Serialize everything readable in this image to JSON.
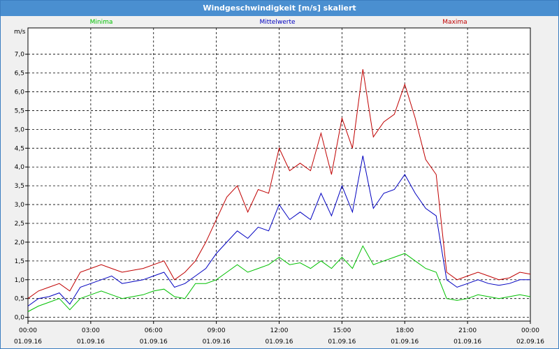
{
  "window": {
    "title": "Windgeschwindigkeit [m/s] skaliert"
  },
  "chart_data": {
    "type": "line",
    "title": "Windgeschwindigkeit [m/s] skaliert",
    "ylabel": "m/s",
    "xlabel": "",
    "ylim": [
      -0.1,
      7.7
    ],
    "yticks": [
      "0,0",
      "0,5",
      "1,0",
      "1,5",
      "2,0",
      "2,5",
      "3,0",
      "3,5",
      "4,0",
      "4,5",
      "5,0",
      "5,5",
      "6,0",
      "6,5",
      "7,0"
    ],
    "xticks": [
      {
        "time": "00:00",
        "date": "01.09.16"
      },
      {
        "time": "03:00",
        "date": "01.09.16"
      },
      {
        "time": "06:00",
        "date": "01.09.16"
      },
      {
        "time": "09:00",
        "date": "01.09.16"
      },
      {
        "time": "12:00",
        "date": "01.09.16"
      },
      {
        "time": "15:00",
        "date": "01.09.16"
      },
      {
        "time": "18:00",
        "date": "01.09.16"
      },
      {
        "time": "21:00",
        "date": "01.09.16"
      },
      {
        "time": "00:00",
        "date": "02.09.16"
      }
    ],
    "grid": true,
    "legend_position": "top",
    "x_hours": [
      0,
      0.5,
      1,
      1.5,
      2,
      2.5,
      3,
      3.5,
      4,
      4.5,
      5,
      5.5,
      6,
      6.5,
      7,
      7.5,
      8,
      8.5,
      9,
      9.5,
      10,
      10.5,
      11,
      11.5,
      12,
      12.5,
      13,
      13.5,
      14,
      14.5,
      15,
      15.5,
      16,
      16.5,
      17,
      17.5,
      18,
      18.5,
      19,
      19.5,
      20,
      20.5,
      21,
      21.5,
      22,
      22.5,
      23,
      23.5,
      24
    ],
    "series": [
      {
        "name": "Minima",
        "color": "#00c000",
        "values": [
          0.15,
          0.3,
          0.4,
          0.5,
          0.2,
          0.5,
          0.6,
          0.7,
          0.6,
          0.5,
          0.55,
          0.6,
          0.7,
          0.75,
          0.55,
          0.5,
          0.9,
          0.9,
          1.0,
          1.2,
          1.4,
          1.2,
          1.3,
          1.4,
          1.6,
          1.4,
          1.45,
          1.3,
          1.5,
          1.3,
          1.6,
          1.3,
          1.9,
          1.4,
          1.5,
          1.6,
          1.7,
          1.5,
          1.3,
          1.2,
          0.5,
          0.45,
          0.5,
          0.6,
          0.55,
          0.5,
          0.55,
          0.6,
          0.55
        ]
      },
      {
        "name": "Mittelwerte",
        "color": "#0000c0",
        "values": [
          0.3,
          0.5,
          0.55,
          0.65,
          0.35,
          0.8,
          0.9,
          1.0,
          1.1,
          0.9,
          0.95,
          1.0,
          1.1,
          1.2,
          0.8,
          0.9,
          1.1,
          1.3,
          1.7,
          2.0,
          2.3,
          2.1,
          2.4,
          2.3,
          3.0,
          2.6,
          2.8,
          2.6,
          3.3,
          2.7,
          3.5,
          2.8,
          4.3,
          2.9,
          3.3,
          3.4,
          3.8,
          3.3,
          2.9,
          2.7,
          1.0,
          0.8,
          0.9,
          1.0,
          0.9,
          0.85,
          0.9,
          1.0,
          1.0
        ]
      },
      {
        "name": "Maxima",
        "color": "#c00000",
        "values": [
          0.5,
          0.7,
          0.8,
          0.9,
          0.7,
          1.2,
          1.3,
          1.4,
          1.3,
          1.2,
          1.25,
          1.3,
          1.4,
          1.5,
          1.0,
          1.2,
          1.5,
          2.0,
          2.6,
          3.2,
          3.5,
          2.8,
          3.4,
          3.3,
          4.5,
          3.9,
          4.1,
          3.9,
          4.9,
          3.8,
          5.3,
          4.5,
          6.6,
          4.8,
          5.2,
          5.4,
          6.2,
          5.3,
          4.2,
          3.8,
          1.2,
          1.0,
          1.1,
          1.2,
          1.1,
          1.0,
          1.05,
          1.2,
          1.15
        ]
      }
    ]
  }
}
